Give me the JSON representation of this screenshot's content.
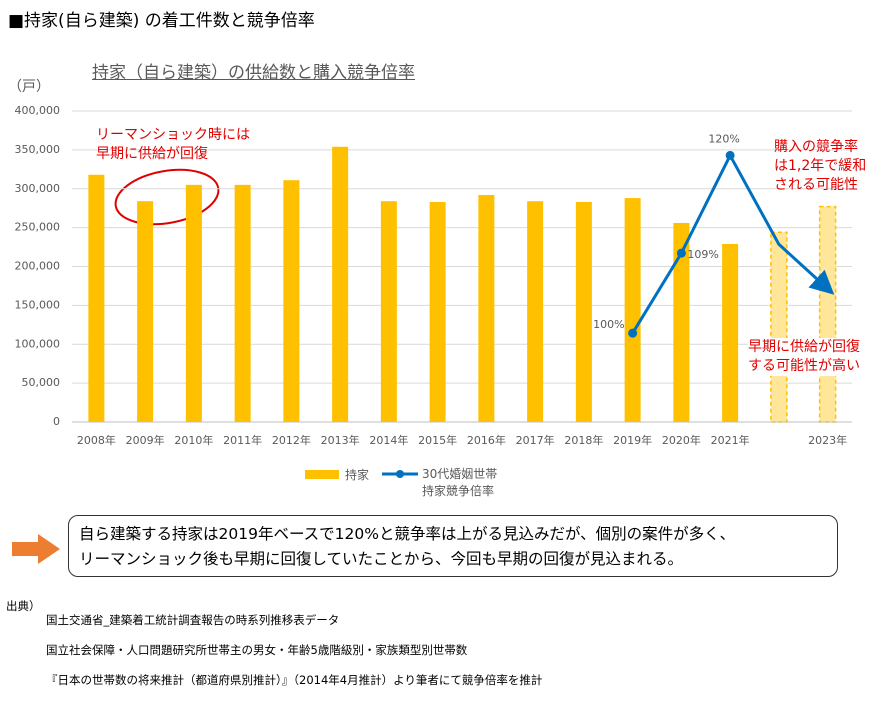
{
  "header": {
    "title": "■持家(自ら建築) の着工件数と競争倍率"
  },
  "chart_data": {
    "type": "bar",
    "title": "持家（自ら建築）の供給数と購入競争倍率",
    "y_label": "（戸）",
    "categories": [
      "2008年",
      "2009年",
      "2010年",
      "2011年",
      "2012年",
      "2013年",
      "2014年",
      "2015年",
      "2016年",
      "2017年",
      "2018年",
      "2019年",
      "2020年",
      "2021年",
      null,
      "2023年"
    ],
    "ylim": [
      0,
      400000
    ],
    "yticks": [
      0,
      {
        "value": 50000,
        "label": "50,000"
      },
      {
        "value": 100000,
        "label": "100,000"
      },
      {
        "value": 150000,
        "label": "150,000"
      },
      {
        "value": 200000,
        "label": "200,000"
      },
      {
        "value": 250000,
        "label": "250,000"
      },
      {
        "value": 300000,
        "label": "300,000"
      },
      {
        "value": 350000,
        "label": "350,000"
      },
      {
        "value": 400000,
        "label": "400,000"
      }
    ],
    "y2lim": [
      90,
      125
    ],
    "grid": true,
    "series": [
      {
        "name": "持家",
        "type": "bar",
        "color": "#FFC000",
        "projected_color": "#FFE699",
        "projected": [
          false,
          false,
          false,
          false,
          false,
          false,
          false,
          false,
          false,
          false,
          false,
          false,
          false,
          false,
          true,
          true
        ],
        "values": [
          318000,
          284000,
          305000,
          305000,
          311000,
          354000,
          284000,
          283000,
          292000,
          284000,
          283000,
          288000,
          256000,
          229000,
          244000,
          277000
        ]
      },
      {
        "name": "30代婚姻世帯\n持家競争倍率",
        "type": "line",
        "axis": "y2",
        "color": "#0070C0",
        "values": [
          null,
          null,
          null,
          null,
          null,
          null,
          null,
          null,
          null,
          null,
          null,
          100,
          109,
          120,
          110,
          105
        ],
        "value_labels": [
          null,
          null,
          null,
          null,
          null,
          null,
          null,
          null,
          null,
          null,
          null,
          "100%",
          "109%",
          "120%",
          null,
          null
        ]
      }
    ],
    "annotations": [
      {
        "text": "リーマンショック時には\n早期に供給が回復"
      },
      {
        "text": "購入の競争率\nは1,2年で緩和\nされる可能性"
      },
      {
        "text": "早期に供給が回復\nする可能性が高い"
      }
    ]
  },
  "callout": {
    "text": "自ら建築する持家は2019年ベースで120%と競争率は上がる見込みだが、個別の案件が多く、\nリーマンショック後も早期に回復していたことから、今回も早期の回復が見込まれる。"
  },
  "source": {
    "label": "出典）",
    "lines": [
      "国土交通省_建築着工統計調査報告の時系列推移表データ",
      "国立社会保障・人口問題研究所世帯主の男女・年齢5歳階級別・家族類型別世帯数",
      "『日本の世帯数の将来推計（都道府県別推計）』（2014年4月推計）より筆者にて競争倍率を推計"
    ]
  }
}
